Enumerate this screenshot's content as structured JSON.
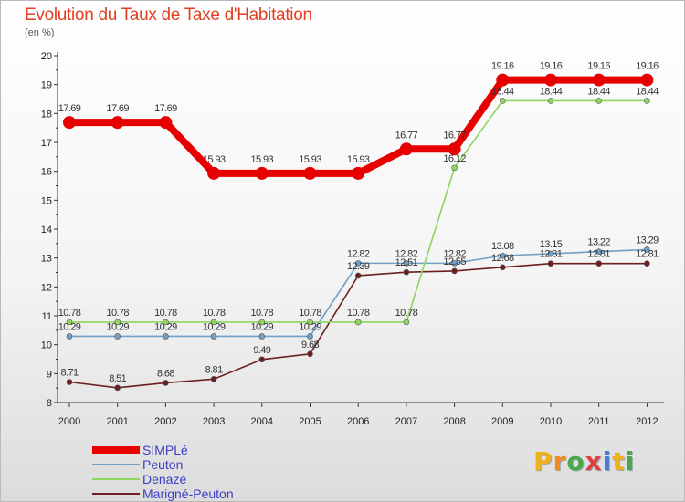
{
  "header": {
    "title": "Evolution du Taux de Taxe d'Habitation",
    "subtitle": "(en %)"
  },
  "brand": {
    "letters": [
      "P",
      "r",
      "o",
      "x",
      "i",
      "t",
      "i"
    ],
    "colors": [
      "#f0b21c",
      "#f08a1c",
      "#4aa84a",
      "#e04040",
      "#4a7ad8",
      "#f0b21c",
      "#4aa84a"
    ]
  },
  "chart_data": {
    "type": "line",
    "title": "Evolution du Taux de Taxe d'Habitation",
    "ylabel": "(en %)",
    "xlabel": "",
    "x": [
      "2000",
      "2001",
      "2002",
      "2003",
      "2004",
      "2005",
      "2006",
      "2007",
      "2008",
      "2009",
      "2010",
      "2011",
      "2012"
    ],
    "ylim": [
      8,
      20
    ],
    "yticks": [
      8,
      9,
      10,
      11,
      12,
      13,
      14,
      15,
      16,
      17,
      18,
      19,
      20
    ],
    "grid": false,
    "legend_position": "bottom-left",
    "series": [
      {
        "name": "SIMPLé",
        "color": "#e60000",
        "values": [
          17.69,
          17.69,
          17.69,
          15.93,
          15.93,
          15.93,
          15.93,
          16.77,
          16.77,
          19.16,
          19.16,
          19.16,
          19.16
        ],
        "labels": [
          "17.69",
          "17.69",
          "17.69",
          "15.93",
          "15.93",
          "15.93",
          "15.93",
          "16.77",
          "16.77",
          "19.16",
          "19.16",
          "19.16",
          "19.16"
        ]
      },
      {
        "name": "Peuton",
        "color": "#6fa0c9",
        "values": [
          10.29,
          10.29,
          10.29,
          10.29,
          10.29,
          10.29,
          12.82,
          12.82,
          12.82,
          13.08,
          13.15,
          13.22,
          13.29
        ],
        "labels": [
          "10.29",
          "10.29",
          "10.29",
          "10.29",
          "10.29",
          "10.29",
          "12.82",
          "12.82",
          "12.82",
          "13.08",
          "13.15",
          "13.22",
          "13.29"
        ]
      },
      {
        "name": "Denazé",
        "color": "#8ed65c",
        "values": [
          10.78,
          10.78,
          10.78,
          10.78,
          10.78,
          10.78,
          10.78,
          10.78,
          16.12,
          18.44,
          18.44,
          18.44,
          18.44
        ],
        "labels": [
          "10.78",
          "10.78",
          "10.78",
          "10.78",
          "10.78",
          "10.78",
          "10.78",
          "10.78",
          "16.12",
          "18.44",
          "18.44",
          "18.44",
          "18.44"
        ]
      },
      {
        "name": "Marigné-Peuton",
        "color": "#6b1f1f",
        "values": [
          8.71,
          8.51,
          8.68,
          8.81,
          9.49,
          9.68,
          12.39,
          12.51,
          12.55,
          12.68,
          12.81,
          12.81,
          12.81
        ],
        "labels": [
          "8.71",
          "8.51",
          "8.68",
          "8.81",
          "9.49",
          "9.68",
          "12.39",
          "12.51",
          "12.55",
          "12.68",
          "12.81",
          "12.81",
          "12.81"
        ]
      }
    ]
  }
}
